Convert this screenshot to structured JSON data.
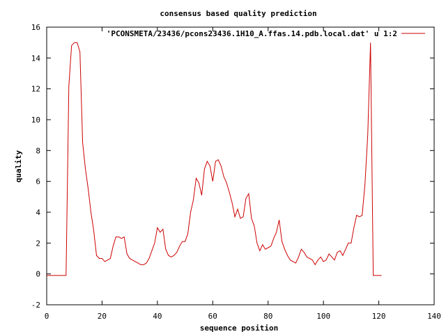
{
  "chart_data": {
    "type": "line",
    "title": "consensus based quality prediction",
    "xlabel": "sequence position",
    "ylabel": "quality",
    "xlim": [
      0,
      140
    ],
    "ylim": [
      -2,
      16
    ],
    "xticks": [
      0,
      20,
      40,
      60,
      80,
      100,
      120,
      140
    ],
    "yticks": [
      -2,
      0,
      2,
      4,
      6,
      8,
      10,
      12,
      14,
      16
    ],
    "grid": false,
    "legend_position": "top-right",
    "series": [
      {
        "name": "'PCONSMETA/23436/pcons23436.1H10_A.ffas.14.pdb.local.dat' u 1:2",
        "color": "#cc0000",
        "x": [
          0,
          1,
          2,
          3,
          4,
          5,
          6,
          7,
          8,
          9,
          10,
          11,
          12,
          13,
          14,
          15,
          16,
          17,
          18,
          19,
          20,
          21,
          22,
          23,
          24,
          25,
          26,
          27,
          28,
          29,
          30,
          31,
          32,
          33,
          34,
          35,
          36,
          37,
          38,
          39,
          40,
          41,
          42,
          43,
          44,
          45,
          46,
          47,
          48,
          49,
          50,
          51,
          52,
          53,
          54,
          55,
          56,
          57,
          58,
          59,
          60,
          61,
          62,
          63,
          64,
          65,
          66,
          67,
          68,
          69,
          70,
          71,
          72,
          73,
          74,
          75,
          76,
          77,
          78,
          79,
          80,
          81,
          82,
          83,
          84,
          85,
          86,
          87,
          88,
          89,
          90,
          91,
          92,
          93,
          94,
          95,
          96,
          97,
          98,
          99,
          100,
          101,
          102,
          103,
          104,
          105,
          106,
          107,
          108,
          109,
          110,
          111,
          112,
          113,
          114,
          115,
          116,
          117,
          118,
          119,
          120,
          121
        ],
        "y": [
          -0.1,
          -0.1,
          -0.1,
          -0.1,
          -0.1,
          -0.1,
          -0.1,
          -0.1,
          12.2,
          14.8,
          15.0,
          15.0,
          14.4,
          8.5,
          6.8,
          5.5,
          4.0,
          2.8,
          1.2,
          1.0,
          1.0,
          0.8,
          0.9,
          1.0,
          1.8,
          2.4,
          2.4,
          2.3,
          2.4,
          1.3,
          1.0,
          0.9,
          0.8,
          0.7,
          0.6,
          0.6,
          0.7,
          1.0,
          1.5,
          2.0,
          3.0,
          2.7,
          2.9,
          1.6,
          1.2,
          1.1,
          1.2,
          1.4,
          1.8,
          2.1,
          2.1,
          2.6,
          4.0,
          4.8,
          6.2,
          5.9,
          5.1,
          6.8,
          7.3,
          7.0,
          6.0,
          7.3,
          7.4,
          7.0,
          6.3,
          5.9,
          5.3,
          4.6,
          3.7,
          4.2,
          3.6,
          3.7,
          4.9,
          5.2,
          3.6,
          3.1,
          2.0,
          1.5,
          1.9,
          1.6,
          1.7,
          1.8,
          2.3,
          2.7,
          3.5,
          2.1,
          1.6,
          1.2,
          0.9,
          0.8,
          0.7,
          1.1,
          1.6,
          1.4,
          1.1,
          1.0,
          0.9,
          0.6,
          0.9,
          1.1,
          0.8,
          0.9,
          1.3,
          1.1,
          0.9,
          1.4,
          1.5,
          1.2,
          1.6,
          2.0,
          2.0,
          3.0,
          3.8,
          3.7,
          3.8,
          5.8,
          9.0,
          15.0,
          -0.1,
          -0.1,
          -0.1,
          -0.1
        ]
      }
    ]
  }
}
